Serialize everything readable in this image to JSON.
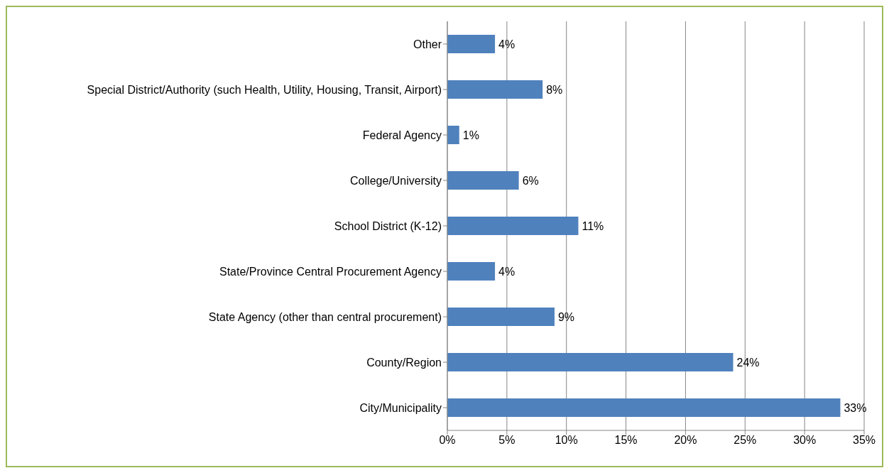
{
  "chart_data": {
    "type": "bar",
    "orientation": "horizontal",
    "categories": [
      "Other",
      "Special District/Authority (such Health, Utility, Housing, Transit, Airport)",
      "Federal Agency",
      "College/University",
      "School District (K-12)",
      "State/Province Central Procurement Agency",
      "State Agency (other than central procurement)",
      "County/Region",
      "City/Municipality"
    ],
    "values": [
      4,
      8,
      1,
      6,
      11,
      4,
      9,
      24,
      33
    ],
    "value_labels": [
      "4%",
      "8%",
      "1%",
      "6%",
      "11%",
      "4%",
      "9%",
      "24%",
      "33%"
    ],
    "color": "#4f81bd",
    "xlim": [
      0,
      35
    ],
    "xticks": [
      {
        "value": 0,
        "label": "0%"
      },
      {
        "value": 5,
        "label": "5%"
      },
      {
        "value": 10,
        "label": "10%"
      },
      {
        "value": 15,
        "label": "15%"
      },
      {
        "value": 20,
        "label": "20%"
      },
      {
        "value": 25,
        "label": "25%"
      },
      {
        "value": 30,
        "label": "30%"
      },
      {
        "value": 35,
        "label": "35%"
      }
    ],
    "grid": "x"
  }
}
